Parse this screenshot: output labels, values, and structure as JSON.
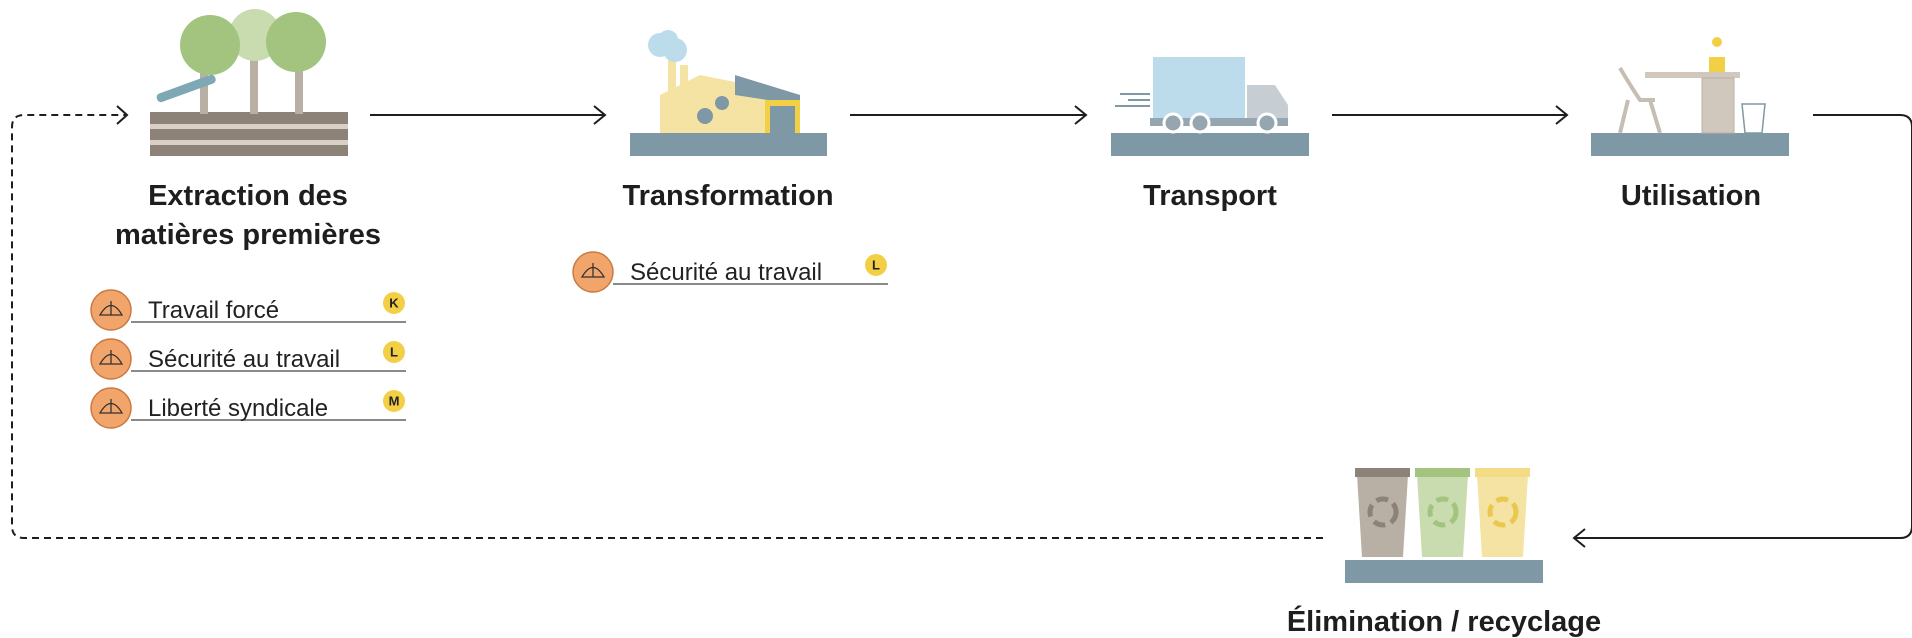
{
  "stages": [
    {
      "title": [
        "Extraction des",
        "matières premières"
      ],
      "issues": [
        {
          "label": "Travail forcé",
          "badge": "K"
        },
        {
          "label": "Sécurité au travail",
          "badge": "L"
        },
        {
          "label": "Liberté syndicale",
          "badge": "M"
        }
      ]
    },
    {
      "title": [
        "Transformation"
      ],
      "issues": [
        {
          "label": "Sécurité au travail",
          "badge": "L"
        }
      ]
    },
    {
      "title": [
        "Transport"
      ],
      "issues": []
    },
    {
      "title": [
        "Utilisation"
      ],
      "issues": []
    },
    {
      "title": [
        "Élimination / recyclage"
      ],
      "issues": []
    }
  ]
}
